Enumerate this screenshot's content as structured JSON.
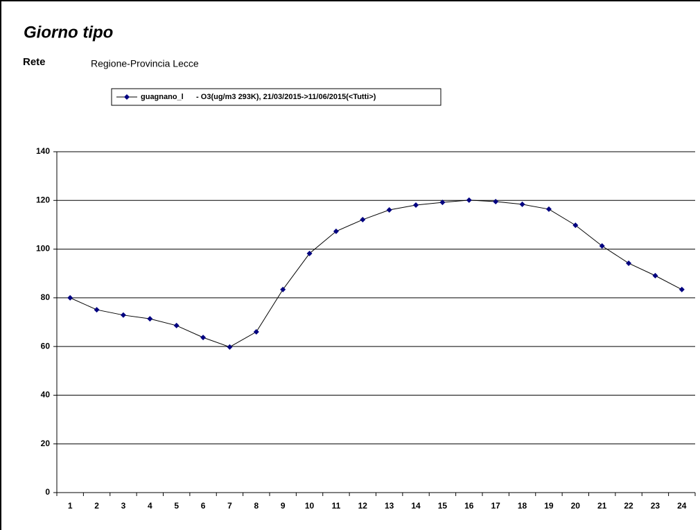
{
  "chart_data": {
    "type": "line",
    "title": "Giorno tipo",
    "network_label": "Rete",
    "network": "Regione-Provincia Lecce",
    "categories": [
      "1",
      "2",
      "3",
      "4",
      "5",
      "6",
      "7",
      "8",
      "9",
      "10",
      "11",
      "12",
      "13",
      "14",
      "15",
      "16",
      "17",
      "18",
      "19",
      "20",
      "21",
      "22",
      "23",
      "24"
    ],
    "series": [
      {
        "name": "guagnano_l      - O3(ug/m3 293K), 21/03/2015->11/06/2015(<Tutti>)",
        "color": "#000080",
        "values": [
          80.0,
          75.1,
          72.9,
          71.4,
          68.6,
          63.7,
          59.8,
          66.0,
          83.4,
          98.2,
          107.3,
          112.1,
          116.1,
          118.1,
          119.2,
          120.1,
          119.5,
          118.4,
          116.4,
          109.8,
          101.3,
          94.2,
          89.1,
          83.4
        ]
      }
    ],
    "ylim": [
      0,
      140
    ],
    "yticks": [
      0,
      20,
      40,
      60,
      80,
      100,
      120,
      140
    ],
    "grid": true,
    "legend": "top"
  }
}
